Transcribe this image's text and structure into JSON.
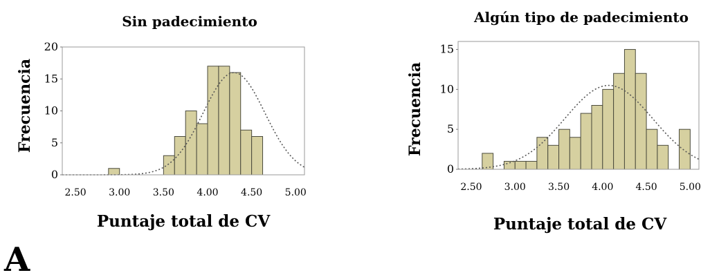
{
  "panel_label": "A",
  "chart_data": [
    {
      "type": "bar",
      "title": "Sin padecimiento",
      "xlabel": "Puntaje total de CV",
      "ylabel": "Frecuencia",
      "bin_width": 0.125,
      "x_ticks": [
        "2.50",
        "3.00",
        "3.50",
        "4.00",
        "4.50",
        "5.00"
      ],
      "y_ticks": [
        "0",
        "5",
        "10",
        "15",
        "20"
      ],
      "xlim": [
        2.35,
        5.1
      ],
      "ylim": [
        0,
        20
      ],
      "bins": [
        {
          "x": 2.9375,
          "value": 1
        },
        {
          "x": 3.5625,
          "value": 3
        },
        {
          "x": 3.6875,
          "value": 6
        },
        {
          "x": 3.8125,
          "value": 10
        },
        {
          "x": 3.9375,
          "value": 8
        },
        {
          "x": 4.0625,
          "value": 17
        },
        {
          "x": 4.1875,
          "value": 17
        },
        {
          "x": 4.3125,
          "value": 16
        },
        {
          "x": 4.4375,
          "value": 7
        },
        {
          "x": 4.5625,
          "value": 6
        }
      ],
      "normal_curve": {
        "mean": 4.3,
        "sd": 0.35,
        "peak": 16
      }
    },
    {
      "type": "bar",
      "title": "Algún tipo de padecimiento",
      "xlabel": "Puntaje total de CV",
      "ylabel": "Frecuencia",
      "bin_width": 0.125,
      "x_ticks": [
        "2.50",
        "3.00",
        "3.50",
        "4.00",
        "4.50",
        "5.00"
      ],
      "y_ticks": [
        "0",
        "5",
        "10",
        "15"
      ],
      "xlim": [
        2.35,
        5.1
      ],
      "ylim": [
        0,
        16
      ],
      "bins": [
        {
          "x": 2.6875,
          "value": 2
        },
        {
          "x": 2.9375,
          "value": 1
        },
        {
          "x": 3.0625,
          "value": 1
        },
        {
          "x": 3.1875,
          "value": 1
        },
        {
          "x": 3.3125,
          "value": 4
        },
        {
          "x": 3.4375,
          "value": 3
        },
        {
          "x": 3.5625,
          "value": 5
        },
        {
          "x": 3.6875,
          "value": 4
        },
        {
          "x": 3.8125,
          "value": 7
        },
        {
          "x": 3.9375,
          "value": 8
        },
        {
          "x": 4.0625,
          "value": 10
        },
        {
          "x": 4.1875,
          "value": 12
        },
        {
          "x": 4.3125,
          "value": 15
        },
        {
          "x": 4.4375,
          "value": 12
        },
        {
          "x": 4.5625,
          "value": 5
        },
        {
          "x": 4.6875,
          "value": 3
        },
        {
          "x": 4.9375,
          "value": 5
        }
      ],
      "normal_curve": {
        "mean": 4.07,
        "sd": 0.5,
        "peak": 10.5
      }
    }
  ]
}
